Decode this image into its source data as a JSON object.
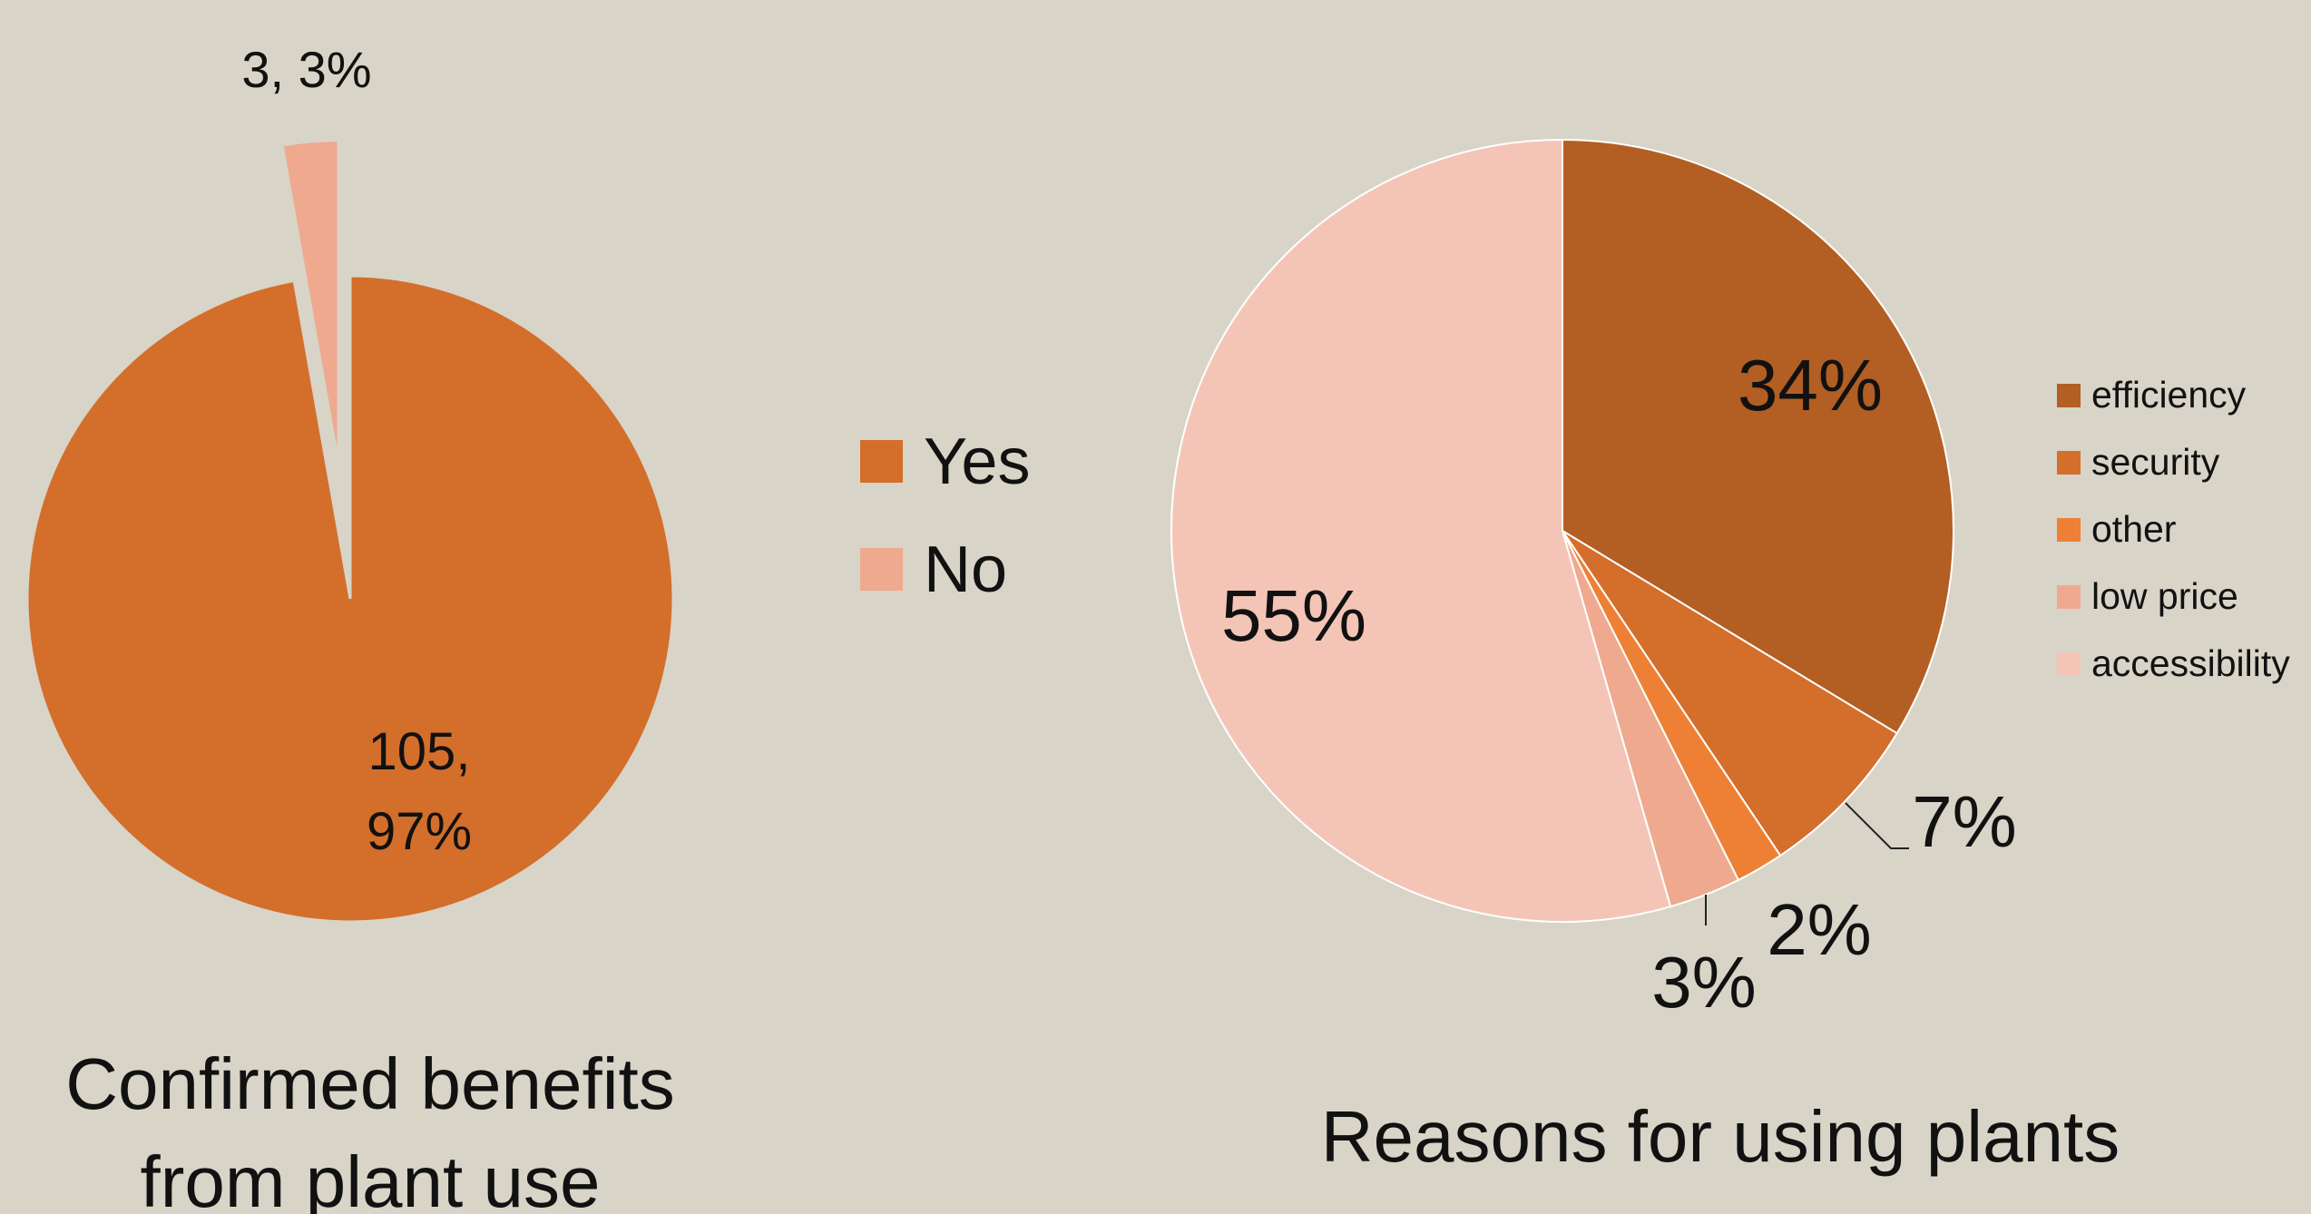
{
  "chart_data": [
    {
      "type": "pie",
      "title": "Confirmed benefits from plant use",
      "title_lines": [
        "Confirmed benefits",
        "from plant use"
      ],
      "legend_position": "right",
      "series": [
        {
          "name": "Yes",
          "count": 105,
          "percent": 97,
          "color": "#d46e2b",
          "exploded": false,
          "label_lines": [
            "105,",
            "97%"
          ]
        },
        {
          "name": "No",
          "count": 3,
          "percent": 3,
          "color": "#efa98f",
          "exploded": true,
          "label_lines": [
            "3, 3%"
          ]
        }
      ]
    },
    {
      "type": "pie",
      "title": "Reasons for using plants",
      "legend_position": "right",
      "series": [
        {
          "name": "efficiency",
          "percent": 34,
          "label": "34%",
          "color": "#b35e22"
        },
        {
          "name": "security",
          "percent": 7,
          "label": "7%",
          "color": "#d46e2b"
        },
        {
          "name": "other",
          "percent": 2,
          "label": "2%",
          "color": "#ee8035"
        },
        {
          "name": "low price",
          "percent": 3,
          "label": "3%",
          "color": "#efa98f"
        },
        {
          "name": "accessibility",
          "percent": 55,
          "label": "55%",
          "color": "#f4c5b6"
        }
      ]
    }
  ]
}
